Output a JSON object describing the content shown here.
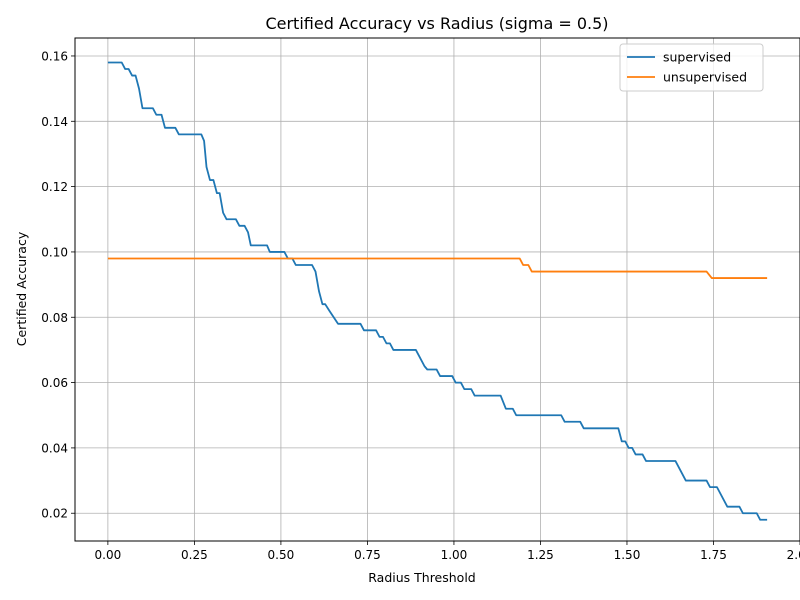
{
  "chart_data": {
    "type": "line",
    "title": "Certified Accuracy vs Radius (sigma = 0.5)",
    "xlabel": "Radius Threshold",
    "ylabel": "Certified Accuracy",
    "xlim": [
      -0.095,
      2.0
    ],
    "ylim": [
      0.0115,
      0.1655
    ],
    "xticks": [
      0.0,
      0.25,
      0.5,
      0.75,
      1.0,
      1.25,
      1.5,
      1.75,
      2.0
    ],
    "xtick_labels": [
      "0.00",
      "0.25",
      "0.50",
      "0.75",
      "1.00",
      "1.25",
      "1.50",
      "1.75",
      "2.00"
    ],
    "yticks": [
      0.02,
      0.04,
      0.06,
      0.08,
      0.1,
      0.12,
      0.14,
      0.16
    ],
    "ytick_labels": [
      "0.02",
      "0.04",
      "0.06",
      "0.08",
      "0.10",
      "0.12",
      "0.14",
      "0.16"
    ],
    "grid": true,
    "legend_position": "top-right",
    "series": [
      {
        "name": "supervised",
        "color": "#1f77b4",
        "points": [
          [
            0.0,
            0.158
          ],
          [
            0.04,
            0.158
          ],
          [
            0.05,
            0.156
          ],
          [
            0.06,
            0.156
          ],
          [
            0.07,
            0.154
          ],
          [
            0.08,
            0.154
          ],
          [
            0.09,
            0.15
          ],
          [
            0.1,
            0.144
          ],
          [
            0.13,
            0.144
          ],
          [
            0.14,
            0.142
          ],
          [
            0.155,
            0.142
          ],
          [
            0.165,
            0.138
          ],
          [
            0.195,
            0.138
          ],
          [
            0.205,
            0.136
          ],
          [
            0.27,
            0.136
          ],
          [
            0.278,
            0.134
          ],
          [
            0.285,
            0.126
          ],
          [
            0.295,
            0.122
          ],
          [
            0.305,
            0.122
          ],
          [
            0.315,
            0.118
          ],
          [
            0.323,
            0.118
          ],
          [
            0.333,
            0.112
          ],
          [
            0.343,
            0.11
          ],
          [
            0.37,
            0.11
          ],
          [
            0.38,
            0.108
          ],
          [
            0.395,
            0.108
          ],
          [
            0.405,
            0.106
          ],
          [
            0.413,
            0.102
          ],
          [
            0.46,
            0.102
          ],
          [
            0.468,
            0.1
          ],
          [
            0.51,
            0.1
          ],
          [
            0.52,
            0.098
          ],
          [
            0.533,
            0.098
          ],
          [
            0.543,
            0.096
          ],
          [
            0.59,
            0.096
          ],
          [
            0.6,
            0.094
          ],
          [
            0.61,
            0.088
          ],
          [
            0.62,
            0.084
          ],
          [
            0.628,
            0.084
          ],
          [
            0.64,
            0.082
          ],
          [
            0.665,
            0.078
          ],
          [
            0.73,
            0.078
          ],
          [
            0.74,
            0.076
          ],
          [
            0.775,
            0.076
          ],
          [
            0.785,
            0.074
          ],
          [
            0.795,
            0.074
          ],
          [
            0.805,
            0.072
          ],
          [
            0.815,
            0.072
          ],
          [
            0.825,
            0.07
          ],
          [
            0.89,
            0.07
          ],
          [
            0.9,
            0.068
          ],
          [
            0.915,
            0.065
          ],
          [
            0.923,
            0.064
          ],
          [
            0.95,
            0.064
          ],
          [
            0.96,
            0.062
          ],
          [
            0.995,
            0.062
          ],
          [
            1.005,
            0.06
          ],
          [
            1.02,
            0.06
          ],
          [
            1.03,
            0.058
          ],
          [
            1.05,
            0.058
          ],
          [
            1.06,
            0.056
          ],
          [
            1.135,
            0.056
          ],
          [
            1.15,
            0.052
          ],
          [
            1.17,
            0.052
          ],
          [
            1.18,
            0.05
          ],
          [
            1.31,
            0.05
          ],
          [
            1.32,
            0.048
          ],
          [
            1.365,
            0.048
          ],
          [
            1.375,
            0.046
          ],
          [
            1.475,
            0.046
          ],
          [
            1.485,
            0.042
          ],
          [
            1.495,
            0.042
          ],
          [
            1.505,
            0.04
          ],
          [
            1.515,
            0.04
          ],
          [
            1.525,
            0.038
          ],
          [
            1.545,
            0.038
          ],
          [
            1.555,
            0.036
          ],
          [
            1.64,
            0.036
          ],
          [
            1.67,
            0.03
          ],
          [
            1.73,
            0.03
          ],
          [
            1.74,
            0.028
          ],
          [
            1.76,
            0.028
          ],
          [
            1.79,
            0.022
          ],
          [
            1.825,
            0.022
          ],
          [
            1.835,
            0.02
          ],
          [
            1.875,
            0.02
          ],
          [
            1.885,
            0.018
          ],
          [
            1.905,
            0.018
          ]
        ]
      },
      {
        "name": "unsupervised",
        "color": "#ff7f0e",
        "points": [
          [
            0.0,
            0.098
          ],
          [
            1.19,
            0.098
          ],
          [
            1.2,
            0.096
          ],
          [
            1.215,
            0.096
          ],
          [
            1.225,
            0.094
          ],
          [
            1.73,
            0.094
          ],
          [
            1.745,
            0.092
          ],
          [
            1.905,
            0.092
          ]
        ]
      }
    ]
  }
}
